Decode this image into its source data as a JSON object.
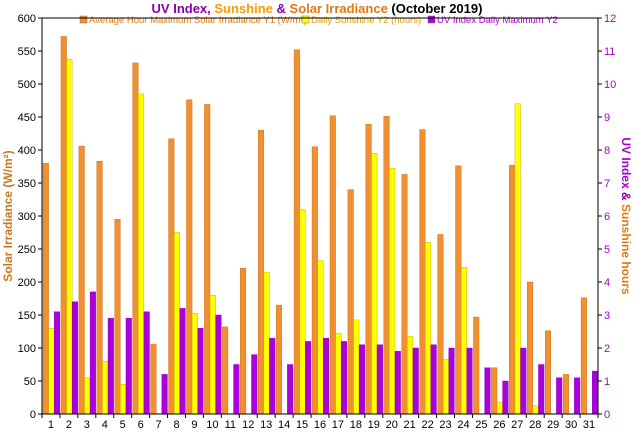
{
  "chart_data": {
    "type": "bar",
    "title": {
      "parts": [
        {
          "text": "UV Index",
          "color": "#8800aa"
        },
        {
          "text": ", ",
          "color": "#8800aa"
        },
        {
          "text": "Sunshine",
          "color": "#ff9900"
        },
        {
          "text": " & ",
          "color": "#8800aa"
        },
        {
          "text": "Solar Irradiance",
          "color": "#e07a10"
        },
        {
          "text": " (October 2019)",
          "color": "#000000"
        }
      ]
    },
    "ylabel_left": "Solar Irradiance (W/m²)",
    "ylabel_right": {
      "parts": [
        {
          "text": "UV Index",
          "color": "#aa00cc"
        },
        {
          "text": " & ",
          "color": "#8800aa"
        },
        {
          "text": "Sunshine hours",
          "color": "#e07a10"
        }
      ]
    },
    "ylim_left": [
      0,
      600
    ],
    "ylim_right": [
      0,
      12
    ],
    "yticks_left": [
      0,
      50,
      100,
      150,
      200,
      250,
      300,
      350,
      400,
      450,
      500,
      550,
      600
    ],
    "yticks_right": [
      0,
      1,
      2,
      3,
      4,
      5,
      6,
      7,
      8,
      9,
      10,
      11,
      12
    ],
    "categories": [
      "1",
      "2",
      "3",
      "4",
      "5",
      "6",
      "7",
      "8",
      "9",
      "10",
      "11",
      "12",
      "13",
      "14",
      "15",
      "16",
      "17",
      "18",
      "19",
      "20",
      "21",
      "22",
      "23",
      "24",
      "25",
      "26",
      "27",
      "28",
      "29",
      "30",
      "31"
    ],
    "series": [
      {
        "name": "Average Hour Maximum Solar Irradiance Y1 (W/m²)",
        "axis": "left",
        "color": "#f09030",
        "values": [
          380,
          572,
          406,
          383,
          295,
          532,
          106,
          417,
          476,
          469,
          132,
          221,
          430,
          165,
          552,
          405,
          452,
          340,
          439,
          451,
          363,
          431,
          272,
          376,
          147,
          70,
          377,
          200,
          126,
          60,
          176
        ]
      },
      {
        "name": "Daily Sunshine Y2 (hours)",
        "axis": "right",
        "color": "#ffff00",
        "values": [
          2.6,
          10.75,
          1.1,
          1.6,
          0.9,
          9.7,
          0.0,
          5.5,
          3.05,
          3.6,
          0.0,
          0.0,
          4.3,
          0.0,
          6.2,
          4.65,
          2.45,
          2.85,
          7.9,
          7.45,
          2.35,
          5.2,
          1.65,
          4.45,
          0.0,
          0.35,
          9.4,
          0.25,
          0.0,
          0.0,
          0.0
        ]
      },
      {
        "name": "UV Index Daily Maximum Y2",
        "axis": "right",
        "color": "#aa00dd",
        "values": [
          3.1,
          3.4,
          3.7,
          2.9,
          2.9,
          3.1,
          1.2,
          3.2,
          2.6,
          3.0,
          1.5,
          1.8,
          2.3,
          1.5,
          2.2,
          2.3,
          2.2,
          2.1,
          2.1,
          1.9,
          2.0,
          2.1,
          2.0,
          2.0,
          1.4,
          1.0,
          2.0,
          1.5,
          1.1,
          1.1,
          1.3
        ]
      }
    ],
    "grid": false,
    "legend_position": "top"
  }
}
